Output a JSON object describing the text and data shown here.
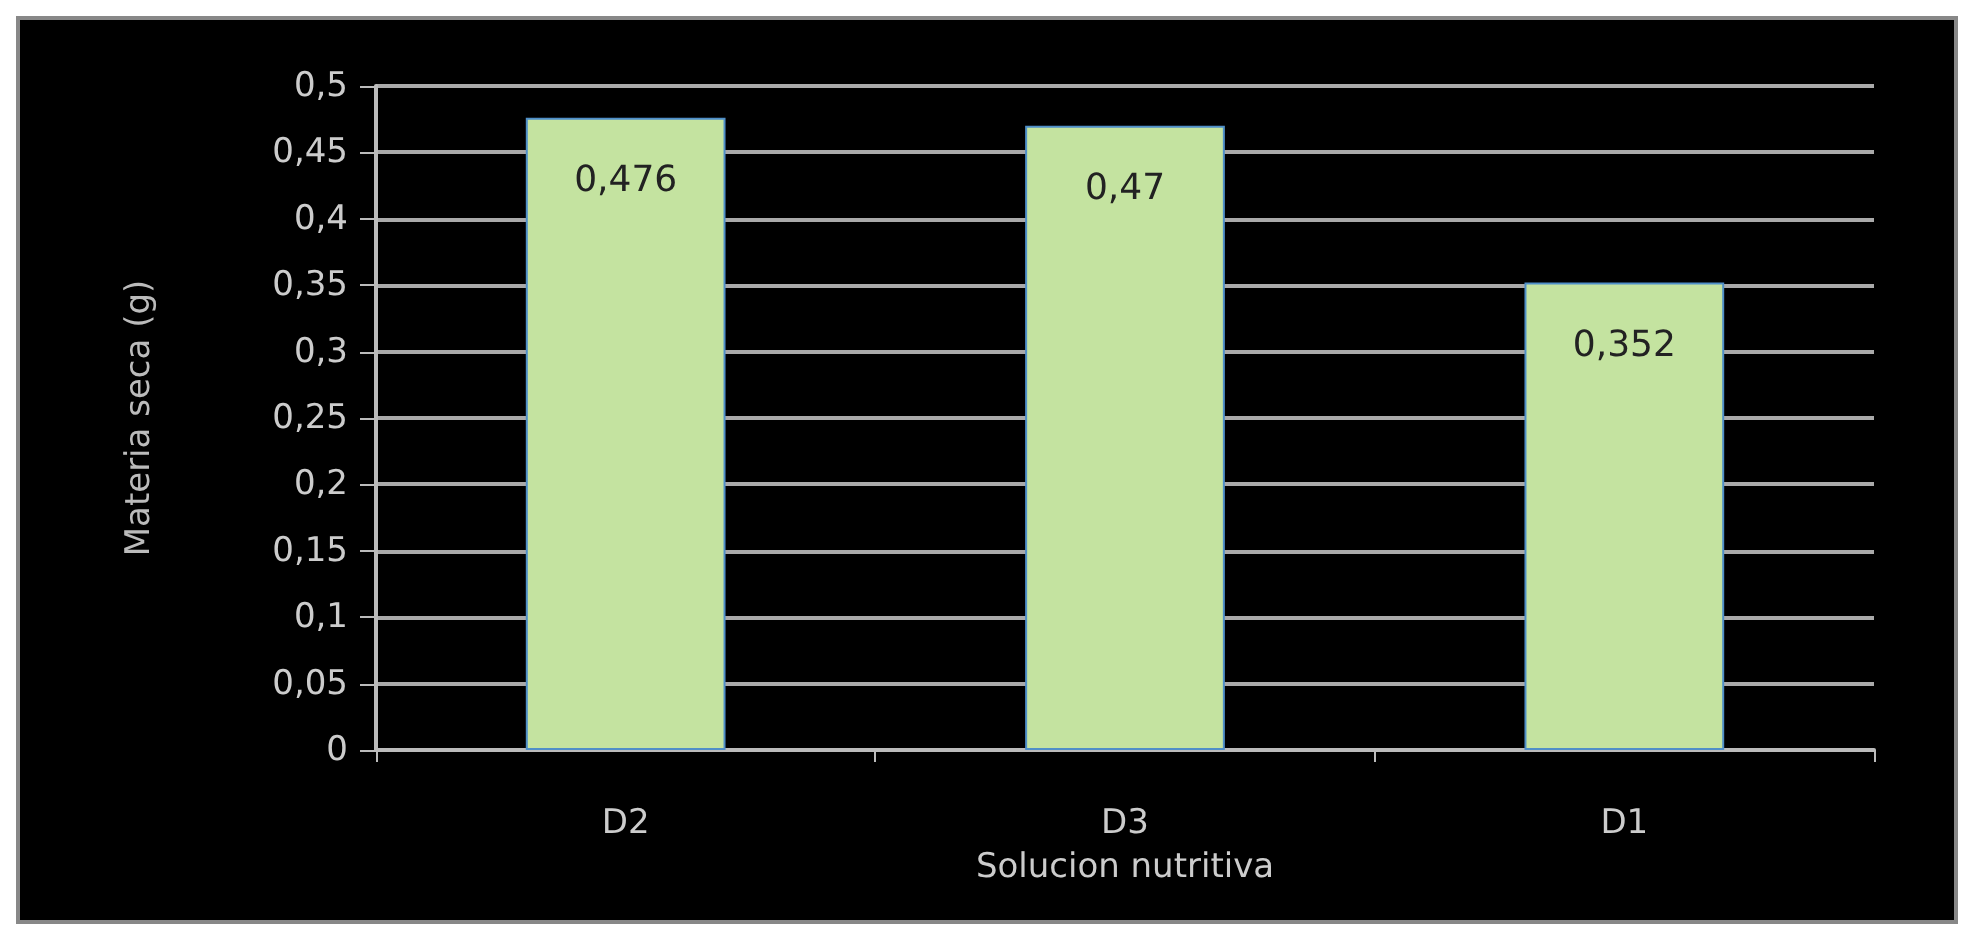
{
  "chart_data": {
    "type": "bar",
    "xlabel": "Solucion nutritiva",
    "ylabel": "Materia seca (g)",
    "categories": [
      "D2",
      "D3",
      "D1"
    ],
    "series": [
      {
        "color": "#c4e3a0",
        "values": [
          0.476,
          0.47,
          0.352
        ],
        "value_labels": [
          "0,476",
          "0,47",
          "0,352"
        ]
      }
    ],
    "ylim": [
      0,
      0.5
    ],
    "yticks": [
      {
        "value": 0,
        "label": "0"
      },
      {
        "value": 0.05,
        "label": "0,05"
      },
      {
        "value": 0.1,
        "label": "0,1"
      },
      {
        "value": 0.15,
        "label": "0,15"
      },
      {
        "value": 0.2,
        "label": "0,2"
      },
      {
        "value": 0.25,
        "label": "0,25"
      },
      {
        "value": 0.3,
        "label": "0,3"
      },
      {
        "value": 0.35,
        "label": "0,35"
      },
      {
        "value": 0.4,
        "label": "0,4"
      },
      {
        "value": 0.45,
        "label": "0,45"
      },
      {
        "value": 0.5,
        "label": "0,5"
      }
    ],
    "grid": "y"
  }
}
